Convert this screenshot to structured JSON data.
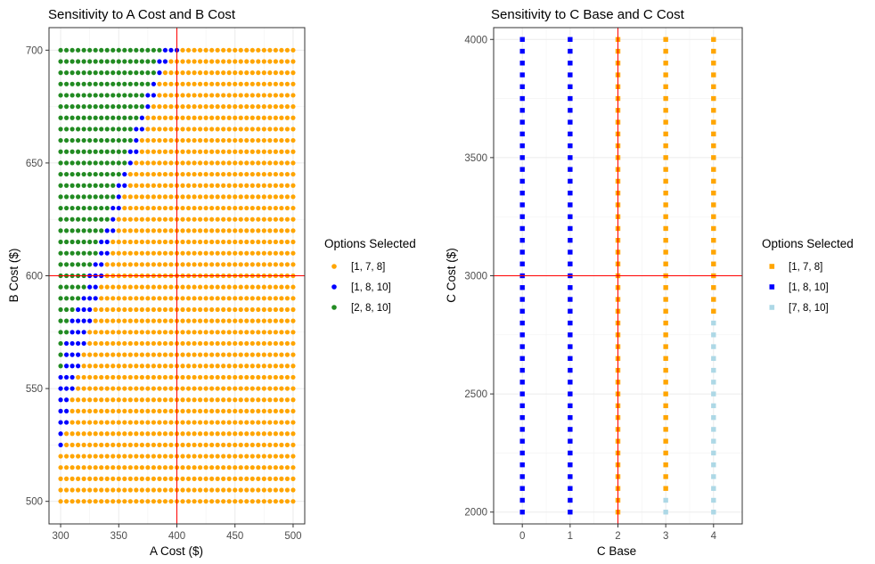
{
  "chart_data": [
    {
      "type": "scatter",
      "title": "Sensitivity to A Cost and B Cost",
      "xlabel": "A Cost ($)",
      "ylabel": "B Cost ($)",
      "xlim": [
        290,
        510
      ],
      "ylim": [
        490,
        710
      ],
      "x_ticks": [
        300,
        350,
        400,
        450,
        500
      ],
      "y_ticks": [
        500,
        550,
        600,
        650,
        700
      ],
      "grid": true,
      "marker": "circle",
      "legend": {
        "title": "Options Selected",
        "placement": "right",
        "entries": [
          {
            "label": "[1, 7, 8]",
            "color": "#FFA500"
          },
          {
            "label": "[1, 8, 10]",
            "color": "#0000FF"
          },
          {
            "label": "[2, 8, 10]",
            "color": "#228B22"
          }
        ]
      },
      "reference_lines": {
        "x": 400,
        "y": 600,
        "color": "#FF0000"
      },
      "grid_points": {
        "x_start": 300,
        "x_end": 500,
        "x_step": 5,
        "y_start": 500,
        "y_end": 700,
        "y_step": 5
      },
      "regions": [
        {
          "series": "[2, 8, 10]",
          "from_x": 300,
          "boundary": [
            [
              500,
              null
            ],
            [
              525,
              null
            ],
            [
              530,
              null
            ],
            [
              535,
              null
            ],
            [
              540,
              null
            ],
            [
              545,
              null
            ],
            [
              550,
              null
            ],
            [
              555,
              null
            ],
            [
              560,
              300
            ],
            [
              565,
              300
            ],
            [
              570,
              300
            ],
            [
              575,
              305
            ],
            [
              580,
              305
            ],
            [
              585,
              310
            ],
            [
              590,
              315
            ],
            [
              595,
              320
            ],
            [
              600,
              320
            ],
            [
              605,
              325
            ],
            [
              610,
              330
            ],
            [
              615,
              330
            ],
            [
              620,
              335
            ],
            [
              625,
              340
            ],
            [
              630,
              340
            ],
            [
              635,
              345
            ],
            [
              640,
              345
            ],
            [
              645,
              350
            ],
            [
              650,
              355
            ],
            [
              655,
              355
            ],
            [
              660,
              360
            ],
            [
              665,
              360
            ],
            [
              670,
              365
            ],
            [
              675,
              370
            ],
            [
              680,
              370
            ],
            [
              685,
              375
            ],
            [
              690,
              380
            ],
            [
              695,
              380
            ],
            [
              700,
              385
            ]
          ]
        },
        {
          "series": "[1, 8, 10]",
          "boundary_max_x": [
            [
              500,
              null
            ],
            [
              505,
              null
            ],
            [
              510,
              null
            ],
            [
              515,
              null
            ],
            [
              520,
              null
            ],
            [
              525,
              300
            ],
            [
              530,
              300
            ],
            [
              535,
              305
            ],
            [
              540,
              305
            ],
            [
              545,
              305
            ],
            [
              550,
              310
            ],
            [
              555,
              310
            ],
            [
              560,
              315
            ],
            [
              565,
              315
            ],
            [
              570,
              320
            ],
            [
              575,
              320
            ],
            [
              580,
              325
            ],
            [
              585,
              325
            ],
            [
              590,
              330
            ],
            [
              595,
              330
            ],
            [
              600,
              335
            ],
            [
              605,
              335
            ],
            [
              610,
              340
            ],
            [
              615,
              340
            ],
            [
              620,
              345
            ],
            [
              625,
              345
            ],
            [
              630,
              350
            ],
            [
              635,
              350
            ],
            [
              640,
              355
            ],
            [
              645,
              355
            ],
            [
              650,
              360
            ],
            [
              655,
              365
            ],
            [
              660,
              365
            ],
            [
              665,
              370
            ],
            [
              670,
              370
            ],
            [
              675,
              375
            ],
            [
              680,
              380
            ],
            [
              685,
              380
            ],
            [
              690,
              385
            ],
            [
              695,
              390
            ],
            [
              700,
              400
            ]
          ]
        },
        {
          "series": "[1, 7, 8]",
          "rest": true
        }
      ]
    },
    {
      "type": "scatter",
      "title": "Sensitivity to C Base and C Cost",
      "xlabel": "C Base",
      "ylabel": "C Cost ($)",
      "xlim": [
        -0.6,
        4.6
      ],
      "ylim": [
        1950,
        4050
      ],
      "x_ticks": [
        0,
        1,
        2,
        3,
        4
      ],
      "y_ticks": [
        2000,
        2500,
        3000,
        3500,
        4000
      ],
      "grid": true,
      "marker": "square",
      "legend": {
        "title": "Options Selected",
        "placement": "right",
        "entries": [
          {
            "label": "[1, 7, 8]",
            "color": "#FFA500"
          },
          {
            "label": "[1, 8, 10]",
            "color": "#0000FF"
          },
          {
            "label": "[7, 8, 10]",
            "color": "#ADD8E6"
          }
        ]
      },
      "reference_lines": {
        "x": 2,
        "y": 3000,
        "color": "#FF0000"
      },
      "grid_points": {
        "x_values": [
          0,
          1,
          2,
          3,
          4
        ],
        "y_start": 2000,
        "y_end": 4000,
        "y_step": 50
      },
      "columns": [
        {
          "x": 0,
          "series": "[1, 8, 10]"
        },
        {
          "x": 1,
          "series": "[1, 8, 10]"
        },
        {
          "x": 2,
          "series": "[1, 7, 8]"
        },
        {
          "x": 3,
          "series": "[1, 7, 8]",
          "lower_series": "[7, 8, 10]",
          "lower_until": 2050
        },
        {
          "x": 4,
          "series": "[1, 7, 8]",
          "lower_series": "[7, 8, 10]",
          "lower_until": 2800
        }
      ]
    }
  ]
}
